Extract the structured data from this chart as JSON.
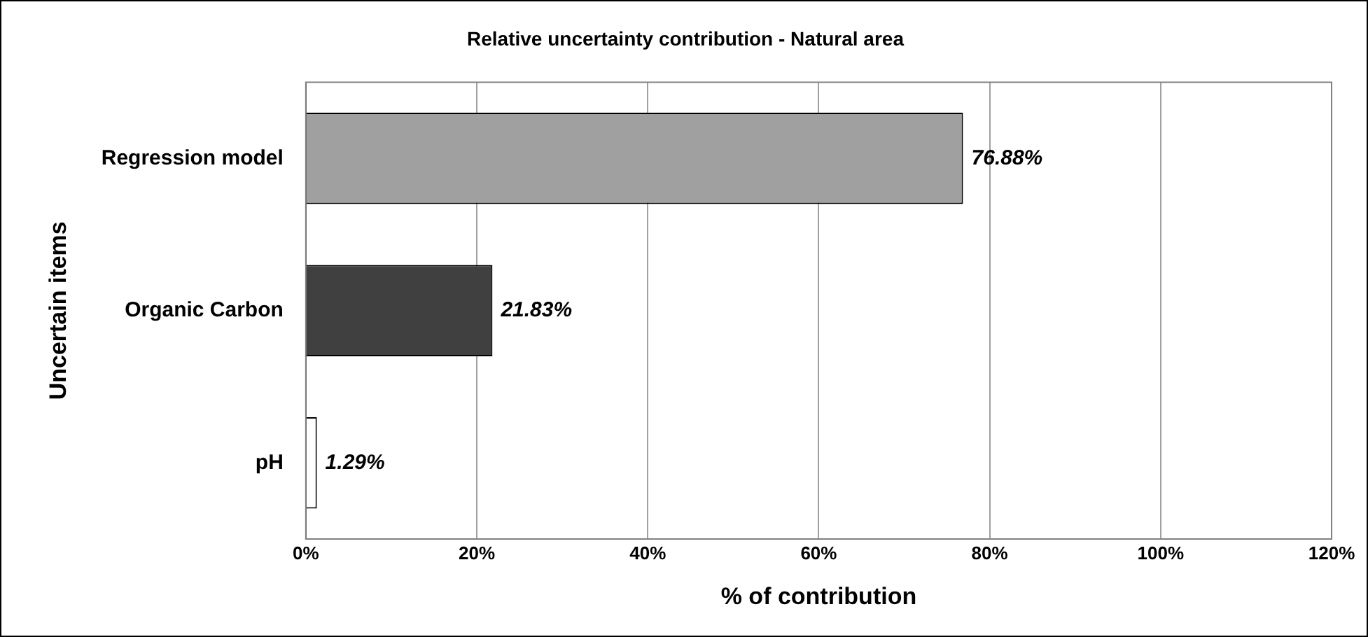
{
  "chart_data": {
    "type": "bar",
    "orientation": "horizontal",
    "title": "Relative uncertainty contribution - Natural area",
    "xlabel": "% of contribution",
    "ylabel": "Uncertain items",
    "categories": [
      "Regression model",
      "Organic Carbon",
      "pH"
    ],
    "values": [
      76.88,
      21.83,
      1.29
    ],
    "colors": [
      "#a0a0a0",
      "#404040",
      "#ffffff"
    ],
    "value_labels": [
      "76.88%",
      "21.83%",
      "1.29%"
    ],
    "xlim": [
      0,
      120
    ],
    "xticks": [
      {
        "value": 0,
        "label": "0%"
      },
      {
        "value": 20,
        "label": "20%"
      },
      {
        "value": 40,
        "label": "40%"
      },
      {
        "value": 60,
        "label": "60%"
      },
      {
        "value": 80,
        "label": "80%"
      },
      {
        "value": 100,
        "label": "100%"
      },
      {
        "value": 120,
        "label": "120%"
      }
    ],
    "grid": "x",
    "legend": false
  }
}
